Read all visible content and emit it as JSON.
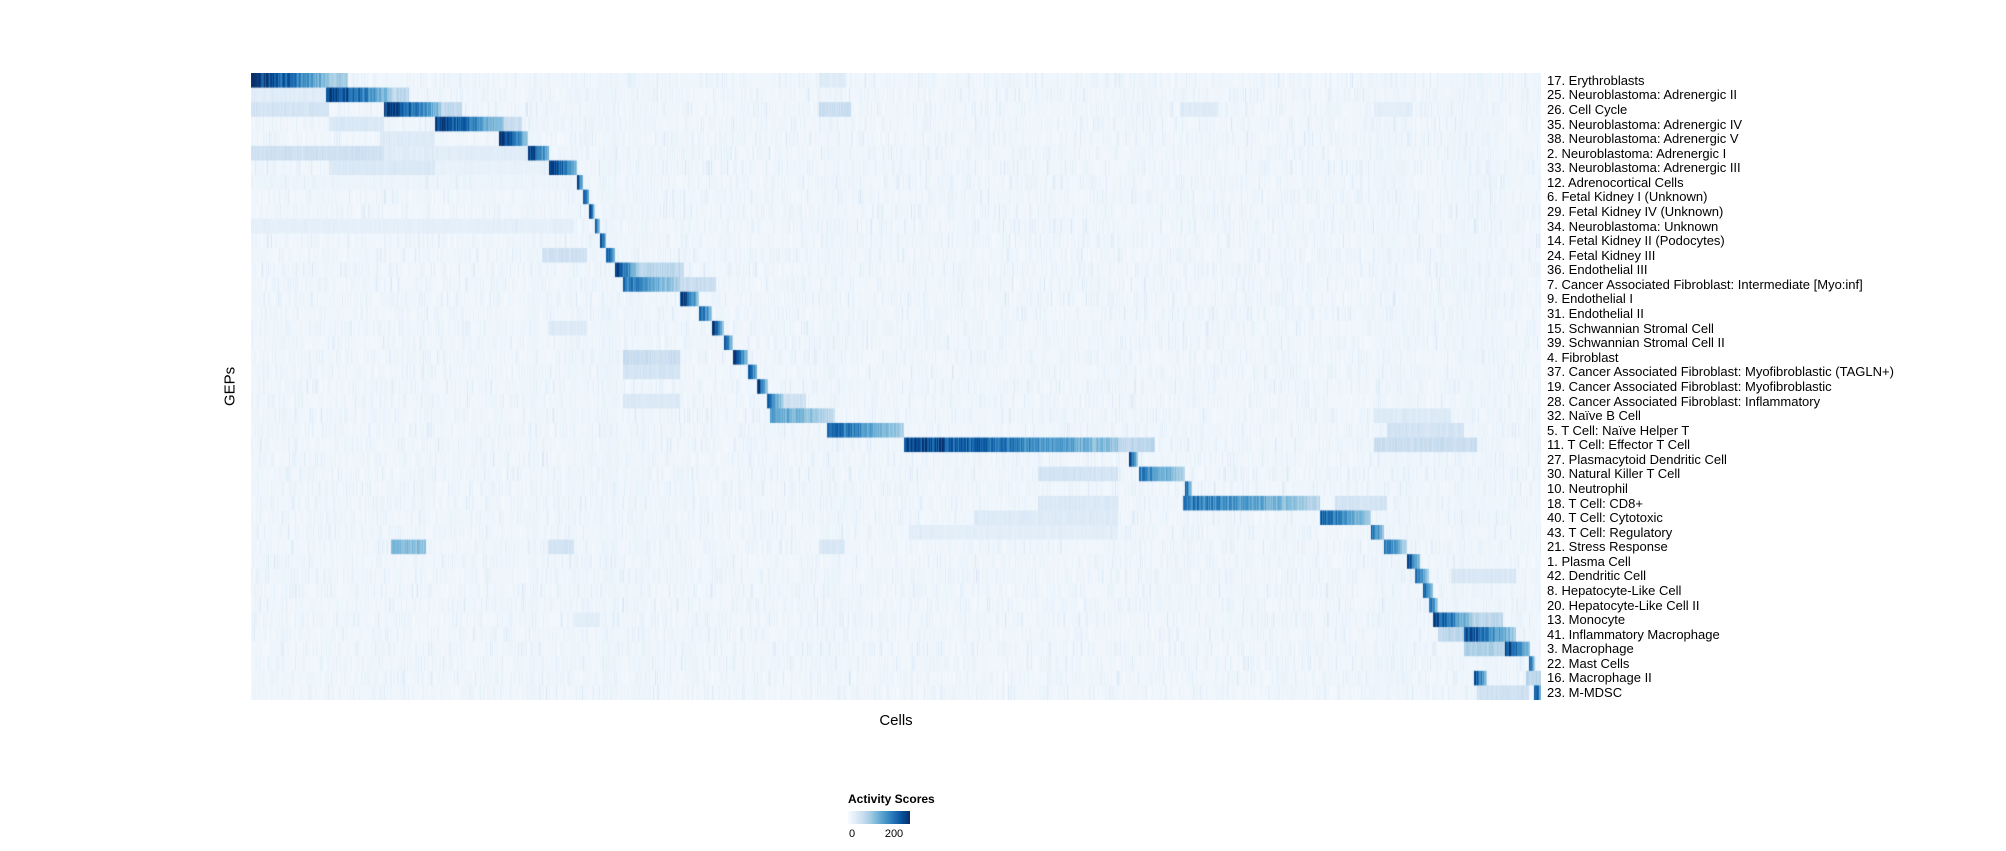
{
  "chart_data": {
    "type": "heatmap",
    "title": "",
    "xlabel": "Cells",
    "ylabel": "GEPs",
    "colorbar": {
      "title": "Activity Scores",
      "min": 0,
      "max": 200,
      "colormap": "Blues",
      "colormap_stops": [
        "#f7fbff",
        "#deebf7",
        "#c6dbef",
        "#9ecae1",
        "#6baed6",
        "#4292c6",
        "#2171b5",
        "#08519c",
        "#08306b"
      ]
    },
    "value_range": [
      0,
      200
    ],
    "background_value": 5,
    "column_streaks": [
      [
        0.216,
        0.222,
        9
      ],
      [
        0.247,
        0.252,
        8
      ],
      [
        0.258,
        0.262,
        8
      ],
      [
        0.272,
        0.284,
        9
      ],
      [
        0.295,
        0.308,
        8
      ],
      [
        0.333,
        0.34,
        7
      ],
      [
        0.443,
        0.455,
        8
      ],
      [
        0.551,
        0.556,
        7
      ],
      [
        0.68,
        0.687,
        6
      ],
      [
        0.87,
        0.9,
        8
      ],
      [
        0.93,
        0.97,
        8
      ]
    ],
    "rows": [
      {
        "label": "17. Erythroblasts",
        "segments": [
          [
            0.0,
            0.06,
            200
          ],
          [
            0.06,
            0.075,
            70
          ],
          [
            0.44,
            0.46,
            25
          ]
        ]
      },
      {
        "label": "25. Neuroblastoma: Adrenergic II",
        "segments": [
          [
            0.058,
            0.108,
            195
          ],
          [
            0.108,
            0.122,
            55
          ],
          [
            0.0,
            0.058,
            22
          ]
        ]
      },
      {
        "label": "26. Cell Cycle",
        "segments": [
          [
            0.103,
            0.147,
            195
          ],
          [
            0.147,
            0.163,
            50
          ],
          [
            0.0,
            0.06,
            35
          ],
          [
            0.44,
            0.465,
            45
          ],
          [
            0.72,
            0.75,
            25
          ],
          [
            0.87,
            0.9,
            20
          ]
        ]
      },
      {
        "label": "35. Neuroblastoma: Adrenergic IV",
        "segments": [
          [
            0.142,
            0.196,
            190
          ],
          [
            0.06,
            0.103,
            28
          ],
          [
            0.196,
            0.21,
            45
          ]
        ]
      },
      {
        "label": "38. Neuroblastoma: Adrenergic V",
        "segments": [
          [
            0.192,
            0.214,
            200
          ],
          [
            0.1,
            0.142,
            25
          ]
        ]
      },
      {
        "label": "2. Neuroblastoma: Adrenergic I",
        "segments": [
          [
            0.214,
            0.231,
            195
          ],
          [
            0.0,
            0.103,
            40
          ],
          [
            0.103,
            0.214,
            22
          ]
        ]
      },
      {
        "label": "33. Neuroblastoma: Adrenergic III",
        "segments": [
          [
            0.231,
            0.252,
            200
          ],
          [
            0.06,
            0.142,
            28
          ],
          [
            0.142,
            0.23,
            15
          ]
        ]
      },
      {
        "label": "12. Adrenocortical Cells",
        "segments": [
          [
            0.252,
            0.257,
            185
          ],
          [
            0.0,
            0.25,
            10
          ]
        ]
      },
      {
        "label": "6. Fetal Kidney I (Unknown)",
        "segments": [
          [
            0.257,
            0.262,
            190
          ]
        ]
      },
      {
        "label": "29. Fetal Kidney IV (Unknown)",
        "segments": [
          [
            0.262,
            0.266,
            175
          ]
        ]
      },
      {
        "label": "34. Neuroblastoma: Unknown",
        "segments": [
          [
            0.266,
            0.27,
            165
          ],
          [
            0.0,
            0.25,
            18
          ]
        ]
      },
      {
        "label": "14. Fetal Kidney II (Podocytes)",
        "segments": [
          [
            0.27,
            0.275,
            185
          ]
        ]
      },
      {
        "label": "24. Fetal Kidney III",
        "segments": [
          [
            0.275,
            0.282,
            175
          ],
          [
            0.225,
            0.26,
            40
          ]
        ]
      },
      {
        "label": "36. Endothelial III",
        "segments": [
          [
            0.282,
            0.3,
            175
          ],
          [
            0.3,
            0.335,
            55
          ]
        ]
      },
      {
        "label": "7. Cancer Associated Fibroblast: Intermediate [Myo:inf]",
        "segments": [
          [
            0.288,
            0.332,
            145
          ],
          [
            0.332,
            0.36,
            45
          ]
        ]
      },
      {
        "label": "9. Endothelial I",
        "segments": [
          [
            0.332,
            0.347,
            190
          ]
        ]
      },
      {
        "label": "31. Endothelial II",
        "segments": [
          [
            0.347,
            0.357,
            180
          ]
        ]
      },
      {
        "label": "15. Schwannian Stromal Cell",
        "segments": [
          [
            0.357,
            0.366,
            180
          ],
          [
            0.23,
            0.26,
            25
          ]
        ]
      },
      {
        "label": "39. Schwannian Stromal Cell II",
        "segments": [
          [
            0.366,
            0.373,
            170
          ]
        ]
      },
      {
        "label": "4. Fibroblast",
        "segments": [
          [
            0.373,
            0.385,
            185
          ],
          [
            0.288,
            0.332,
            45
          ]
        ]
      },
      {
        "label": "37. Cancer Associated Fibroblast: Myofibroblastic (TAGLN+)",
        "segments": [
          [
            0.385,
            0.392,
            180
          ],
          [
            0.288,
            0.332,
            35
          ]
        ]
      },
      {
        "label": "19. Cancer Associated Fibroblast: Myofibroblastic",
        "segments": [
          [
            0.392,
            0.4,
            190
          ]
        ]
      },
      {
        "label": "28. Cancer Associated Fibroblast: Inflammatory",
        "segments": [
          [
            0.4,
            0.413,
            150
          ],
          [
            0.288,
            0.332,
            28
          ],
          [
            0.413,
            0.43,
            40
          ]
        ]
      },
      {
        "label": "32. Naïve B Cell",
        "segments": [
          [
            0.402,
            0.452,
            115
          ],
          [
            0.87,
            0.93,
            25
          ]
        ]
      },
      {
        "label": "5. T Cell: Naïve Helper T",
        "segments": [
          [
            0.446,
            0.506,
            155
          ],
          [
            0.88,
            0.94,
            35
          ]
        ]
      },
      {
        "label": "11. T Cell: Effector T Cell",
        "segments": [
          [
            0.506,
            0.672,
            185
          ],
          [
            0.672,
            0.7,
            55
          ],
          [
            0.87,
            0.95,
            45
          ]
        ]
      },
      {
        "label": "27. Plasmacytoid Dendritic Cell",
        "segments": [
          [
            0.68,
            0.687,
            175
          ]
        ]
      },
      {
        "label": "30. Natural Killer T Cell",
        "segments": [
          [
            0.688,
            0.724,
            140
          ],
          [
            0.61,
            0.672,
            35
          ]
        ]
      },
      {
        "label": "10. Neutrophil",
        "segments": [
          [
            0.724,
            0.729,
            165
          ]
        ]
      },
      {
        "label": "18. T Cell: CD8+",
        "segments": [
          [
            0.722,
            0.828,
            145
          ],
          [
            0.61,
            0.672,
            28
          ],
          [
            0.84,
            0.88,
            35
          ]
        ]
      },
      {
        "label": "40. T Cell: Cytotoxic",
        "segments": [
          [
            0.828,
            0.868,
            160
          ],
          [
            0.56,
            0.672,
            25
          ]
        ]
      },
      {
        "label": "43. T Cell: Regulatory",
        "segments": [
          [
            0.868,
            0.878,
            155
          ],
          [
            0.51,
            0.672,
            20
          ]
        ]
      },
      {
        "label": "21. Stress Response",
        "segments": [
          [
            0.878,
            0.896,
            145
          ],
          [
            0.108,
            0.135,
            85
          ],
          [
            0.23,
            0.25,
            35
          ],
          [
            0.44,
            0.46,
            30
          ]
        ]
      },
      {
        "label": "1. Plasma Cell",
        "segments": [
          [
            0.896,
            0.906,
            175
          ]
        ]
      },
      {
        "label": "42. Dendritic Cell",
        "segments": [
          [
            0.902,
            0.913,
            150
          ],
          [
            0.93,
            0.98,
            30
          ]
        ]
      },
      {
        "label": "8. Hepatocyte-Like Cell",
        "segments": [
          [
            0.908,
            0.916,
            165
          ]
        ]
      },
      {
        "label": "20. Hepatocyte-Like Cell II",
        "segments": [
          [
            0.913,
            0.92,
            150
          ]
        ]
      },
      {
        "label": "13. Monocyte",
        "segments": [
          [
            0.916,
            0.946,
            175
          ],
          [
            0.946,
            0.97,
            55
          ],
          [
            0.25,
            0.27,
            20
          ]
        ]
      },
      {
        "label": "41. Inflammatory Macrophage",
        "segments": [
          [
            0.94,
            0.98,
            175
          ],
          [
            0.92,
            0.94,
            55
          ]
        ]
      },
      {
        "label": "3. Macrophage",
        "segments": [
          [
            0.972,
            0.991,
            185
          ],
          [
            0.94,
            0.972,
            65
          ]
        ]
      },
      {
        "label": "22. Mast Cells",
        "segments": [
          [
            0.99,
            0.995,
            165
          ]
        ]
      },
      {
        "label": "16. Macrophage II",
        "segments": [
          [
            0.948,
            0.958,
            175
          ],
          [
            0.988,
            1.0,
            55
          ]
        ]
      },
      {
        "label": "23. M-MDSC",
        "segments": [
          [
            0.994,
            1.0,
            195
          ],
          [
            0.95,
            0.99,
            40
          ]
        ]
      }
    ]
  }
}
